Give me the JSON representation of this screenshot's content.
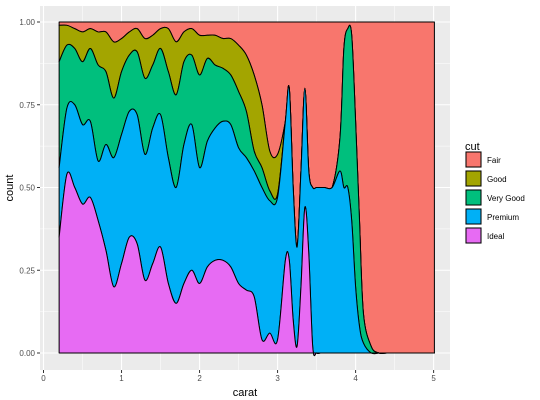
{
  "chart_data": {
    "type": "area",
    "stacking": "fill",
    "xlabel": "carat",
    "ylabel": "count",
    "xlim": [
      0,
      5.0
    ],
    "ylim": [
      0,
      1.0
    ],
    "x_ticks": [
      "0",
      "1",
      "2",
      "3",
      "4",
      "5"
    ],
    "y_ticks": [
      "0.00",
      "0.25",
      "0.50",
      "0.75",
      "1.00"
    ],
    "grid": true,
    "legend": {
      "title": "cut",
      "position": "right"
    },
    "x": [
      0.2,
      0.3,
      0.4,
      0.5,
      0.6,
      0.7,
      0.8,
      0.9,
      1.0,
      1.1,
      1.2,
      1.3,
      1.4,
      1.5,
      1.6,
      1.7,
      1.8,
      1.9,
      2.0,
      2.1,
      2.2,
      2.3,
      2.4,
      2.5,
      2.6,
      2.7,
      2.8,
      2.9,
      3.0,
      3.1,
      3.15,
      3.2,
      3.25,
      3.3,
      3.35,
      3.4,
      3.45,
      3.5,
      3.55,
      3.6,
      3.7,
      3.8,
      3.85,
      3.9,
      3.95,
      4.0,
      4.05,
      4.1,
      4.2,
      4.3,
      4.4,
      4.5,
      5.01
    ],
    "boundaries": {
      "ideal_top": [
        0.35,
        0.54,
        0.5,
        0.45,
        0.47,
        0.4,
        0.31,
        0.2,
        0.27,
        0.35,
        0.33,
        0.22,
        0.27,
        0.32,
        0.21,
        0.15,
        0.21,
        0.25,
        0.21,
        0.26,
        0.28,
        0.28,
        0.26,
        0.21,
        0.19,
        0.17,
        0.04,
        0.06,
        0.04,
        0.28,
        0.28,
        0.1,
        0.02,
        0.2,
        0.44,
        0.3,
        0.02,
        0.0,
        0.0,
        0.0,
        0.0,
        0.0,
        0.0,
        0.0,
        0.0,
        0.0,
        0.0,
        0.0,
        0.0,
        0.0,
        0.0,
        0.0,
        0.0
      ],
      "premium_top": [
        0.56,
        0.74,
        0.75,
        0.69,
        0.7,
        0.58,
        0.63,
        0.59,
        0.66,
        0.73,
        0.72,
        0.6,
        0.68,
        0.72,
        0.59,
        0.5,
        0.63,
        0.69,
        0.56,
        0.64,
        0.68,
        0.7,
        0.69,
        0.62,
        0.59,
        0.55,
        0.5,
        0.46,
        0.47,
        0.7,
        0.8,
        0.5,
        0.32,
        0.55,
        0.8,
        0.55,
        0.5,
        0.5,
        0.5,
        0.5,
        0.5,
        0.55,
        0.5,
        0.5,
        0.4,
        0.2,
        0.08,
        0.03,
        0.0,
        0.0,
        0.0,
        0.0,
        0.0
      ],
      "very_good_top": [
        0.88,
        0.93,
        0.92,
        0.88,
        0.92,
        0.87,
        0.85,
        0.77,
        0.85,
        0.9,
        0.91,
        0.83,
        0.87,
        0.92,
        0.85,
        0.78,
        0.88,
        0.9,
        0.84,
        0.89,
        0.87,
        0.86,
        0.84,
        0.79,
        0.73,
        0.61,
        0.56,
        0.49,
        0.48,
        0.7,
        0.8,
        0.5,
        0.32,
        0.55,
        0.8,
        0.55,
        0.5,
        0.5,
        0.5,
        0.5,
        0.5,
        0.65,
        0.92,
        0.98,
        0.96,
        0.7,
        0.4,
        0.12,
        0.02,
        0.0,
        0.0,
        0.0,
        0.0
      ],
      "good_top": [
        0.99,
        0.99,
        0.98,
        0.97,
        0.98,
        0.97,
        0.97,
        0.94,
        0.95,
        0.97,
        0.98,
        0.95,
        0.96,
        0.98,
        0.98,
        0.94,
        0.97,
        0.98,
        0.96,
        0.96,
        0.96,
        0.95,
        0.95,
        0.93,
        0.9,
        0.84,
        0.75,
        0.61,
        0.6,
        0.7,
        0.8,
        0.5,
        0.32,
        0.55,
        0.8,
        0.55,
        0.5,
        0.5,
        0.5,
        0.5,
        0.5,
        0.65,
        0.92,
        0.98,
        0.96,
        0.7,
        0.4,
        0.12,
        0.02,
        0.0,
        0.0,
        0.0,
        0.0
      ],
      "fair_top": [
        1.0,
        1.0,
        1.0,
        1.0,
        1.0,
        1.0,
        1.0,
        1.0,
        1.0,
        1.0,
        1.0,
        1.0,
        1.0,
        1.0,
        1.0,
        1.0,
        1.0,
        1.0,
        1.0,
        1.0,
        1.0,
        1.0,
        1.0,
        1.0,
        1.0,
        1.0,
        1.0,
        1.0,
        1.0,
        1.0,
        1.0,
        1.0,
        1.0,
        1.0,
        1.0,
        1.0,
        1.0,
        1.0,
        1.0,
        1.0,
        1.0,
        1.0,
        1.0,
        1.0,
        1.0,
        1.0,
        1.0,
        1.0,
        1.0,
        1.0,
        1.0,
        1.0,
        1.0
      ]
    },
    "series": [
      {
        "name": "Fair",
        "color": "#F8766D",
        "lower": "good_top",
        "upper": "fair_top"
      },
      {
        "name": "Good",
        "color": "#A3A500",
        "lower": "very_good_top",
        "upper": "good_top"
      },
      {
        "name": "Very Good",
        "color": "#00BF7D",
        "lower": "premium_top",
        "upper": "very_good_top"
      },
      {
        "name": "Premium",
        "color": "#00B0F6",
        "lower": "ideal_top",
        "upper": "premium_top"
      },
      {
        "name": "Ideal",
        "color": "#E76BF3",
        "lower": null,
        "upper": "ideal_top"
      }
    ],
    "panel_background": "#EBEBEB",
    "grid_color": "#FFFFFF"
  }
}
